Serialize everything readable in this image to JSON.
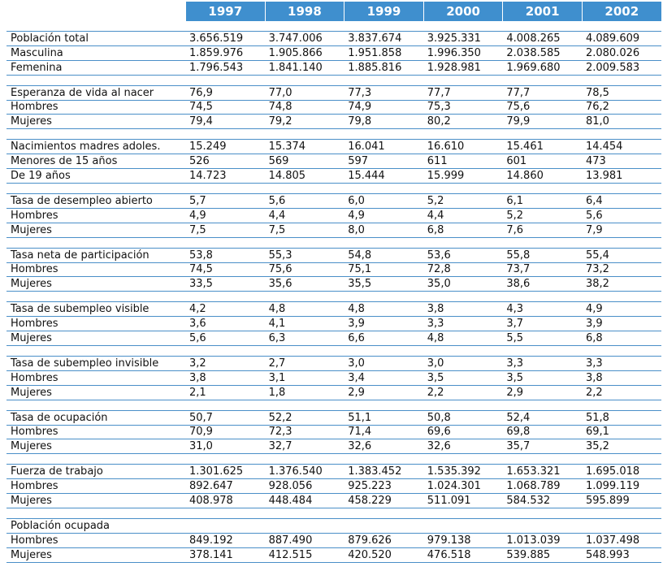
{
  "header": {
    "years": [
      "1997",
      "1998",
      "1999",
      "2000",
      "2001",
      "2002"
    ]
  },
  "groups": [
    {
      "rows": [
        {
          "label": "Población total",
          "values": [
            "3.656.519",
            "3.747.006",
            "3.837.674",
            "3.925.331",
            "4.008.265",
            "4.089.609"
          ]
        },
        {
          "label": "Masculina",
          "values": [
            "1.859.976",
            "1.905.866",
            "1.951.858",
            "1.996.350",
            "2.038.585",
            "2.080.026"
          ]
        },
        {
          "label": "Femenina",
          "values": [
            "1.796.543",
            "1.841.140",
            "1.885.816",
            "1.928.981",
            "1.969.680",
            "2.009.583"
          ]
        }
      ]
    },
    {
      "rows": [
        {
          "label": "Esperanza de  vida al nacer",
          "values": [
            "76,9",
            "77,0",
            "77,3",
            "77,7",
            "77,7",
            "78,5"
          ]
        },
        {
          "label": "Hombres",
          "values": [
            "74,5",
            "74,8",
            "74,9",
            "75,3",
            "75,6",
            "76,2"
          ]
        },
        {
          "label": "Mujeres",
          "values": [
            "79,4",
            "79,2",
            "79,8",
            "80,2",
            "79,9",
            "81,0"
          ]
        }
      ]
    },
    {
      "rows": [
        {
          "label": "Nacimientos madres adoles.",
          "values": [
            "15.249",
            "15.374",
            "16.041",
            "16.610",
            "15.461",
            "14.454"
          ]
        },
        {
          "label": "Menores de 15 años",
          "values": [
            "526",
            "569",
            "597",
            "611",
            "601",
            "473"
          ]
        },
        {
          "label": "De 19 años",
          "values": [
            "14.723",
            "14.805",
            "15.444",
            "15.999",
            "14.860",
            "13.981"
          ]
        }
      ]
    },
    {
      "rows": [
        {
          "label": "Tasa de desempleo abierto",
          "values": [
            "5,7",
            "5,6",
            "6,0",
            "5,2",
            "6,1",
            "6,4"
          ]
        },
        {
          "label": "Hombres",
          "values": [
            "4,9",
            "4,4",
            "4,9",
            "4,4",
            "5,2",
            "5,6"
          ]
        },
        {
          "label": "Mujeres",
          "values": [
            "7,5",
            "7,5",
            "8,0",
            "6,8",
            "7,6",
            "7,9"
          ]
        }
      ]
    },
    {
      "rows": [
        {
          "label": "Tasa neta de participación",
          "values": [
            "53,8",
            "55,3",
            "54,8",
            "53,6",
            "55,8",
            "55,4"
          ]
        },
        {
          "label": "Hombres",
          "values": [
            "74,5",
            "75,6",
            "75,1",
            "72,8",
            "73,7",
            "73,2"
          ]
        },
        {
          "label": "Mujeres",
          "values": [
            "33,5",
            "35,6",
            "35,5",
            "35,0",
            "38,6",
            "38,2"
          ]
        }
      ]
    },
    {
      "rows": [
        {
          "label": "Tasa de subempleo visible",
          "values": [
            "4,2",
            "4,8",
            "4,8",
            "3,8",
            "4,3",
            "4,9"
          ]
        },
        {
          "label": "Hombres",
          "values": [
            "3,6",
            "4,1",
            "3,9",
            "3,3",
            "3,7",
            "3,9"
          ]
        },
        {
          "label": "Mujeres",
          "values": [
            "5,6",
            "6,3",
            "6,6",
            "4,8",
            "5,5",
            "6,8"
          ]
        }
      ]
    },
    {
      "rows": [
        {
          "label": "Tasa de subempleo invisible",
          "values": [
            "3,2",
            "2,7",
            "3,0",
            "3,0",
            "3,3",
            "3,3"
          ]
        },
        {
          "label": "Hombres",
          "values": [
            "3,8",
            "3,1",
            "3,4",
            "3,5",
            "3,5",
            "3,8"
          ]
        },
        {
          "label": "Mujeres",
          "values": [
            "2,1",
            "1,8",
            "2,9",
            "2,2",
            "2,9",
            "2,2"
          ]
        }
      ]
    },
    {
      "rows": [
        {
          "label": "Tasa de ocupación",
          "values": [
            "50,7",
            "52,2",
            "51,1",
            "50,8",
            "52,4",
            "51,8"
          ]
        },
        {
          "label": "Hombres",
          "values": [
            "70,9",
            "72,3",
            "71,4",
            "69,6",
            "69,8",
            "69,1"
          ]
        },
        {
          "label": "Mujeres",
          "values": [
            "31,0",
            "32,7",
            "32,6",
            "32,6",
            "35,7",
            "35,2"
          ]
        }
      ]
    },
    {
      "rows": [
        {
          "label": "Fuerza de trabajo",
          "values": [
            "1.301.625",
            "1.376.540",
            "1.383.452",
            "1.535.392",
            "1.653.321",
            "1.695.018"
          ]
        },
        {
          "label": "Hombres",
          "values": [
            "892.647",
            "928.056",
            "925.223",
            "1.024.301",
            "1.068.789",
            "1.099.119"
          ]
        },
        {
          "label": "Mujeres",
          "values": [
            "408.978",
            "448.484",
            "458.229",
            "511.091",
            "584.532",
            "595.899"
          ]
        }
      ]
    },
    {
      "rows": [
        {
          "label": "Población ocupada",
          "values": [
            "",
            "",
            "",
            "",
            "",
            ""
          ]
        },
        {
          "label": "Hombres",
          "values": [
            "849.192",
            "887.490",
            "879.626",
            "979.138",
            "1.013.039",
            "1.037.498"
          ]
        },
        {
          "label": "Mujeres",
          "values": [
            "378.141",
            "412.515",
            "420.520",
            "476.518",
            "539.885",
            "548.993"
          ]
        }
      ]
    }
  ]
}
